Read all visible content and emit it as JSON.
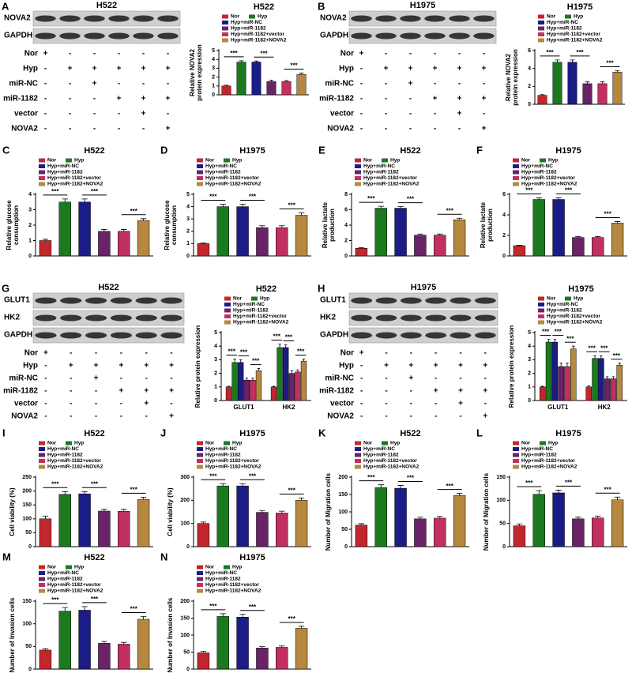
{
  "blots": [
    {
      "panel": "A",
      "title": "H522",
      "proteins": [
        "NOVA2",
        "GAPDH"
      ],
      "rows": [
        {
          "label": "Nor",
          "signs": [
            "+",
            "-",
            "-",
            "-",
            "-",
            "-"
          ]
        },
        {
          "label": "Hyp",
          "signs": [
            "-",
            "+",
            "+",
            "+",
            "+",
            "+"
          ]
        },
        {
          "label": "miR-NC",
          "signs": [
            "-",
            "-",
            "+",
            "-",
            "-",
            "-"
          ]
        },
        {
          "label": "miR-1182",
          "signs": [
            "-",
            "-",
            "-",
            "+",
            "+",
            "+"
          ]
        },
        {
          "label": "vector",
          "signs": [
            "-",
            "-",
            "-",
            "-",
            "+",
            "-"
          ]
        },
        {
          "label": "NOVA2",
          "signs": [
            "-",
            "-",
            "-",
            "-",
            "-",
            "+"
          ]
        }
      ]
    },
    {
      "panel": "B",
      "title": "H1975",
      "proteins": [
        "NOVA2",
        "GAPDH"
      ],
      "rows": [
        {
          "label": "Nor",
          "signs": [
            "+",
            "-",
            "-",
            "-",
            "-",
            "-"
          ]
        },
        {
          "label": "Hyp",
          "signs": [
            "-",
            "+",
            "+",
            "+",
            "+",
            "+"
          ]
        },
        {
          "label": "miR-NC",
          "signs": [
            "-",
            "-",
            "+",
            "-",
            "-",
            "-"
          ]
        },
        {
          "label": "miR-1182",
          "signs": [
            "-",
            "-",
            "-",
            "+",
            "+",
            "+"
          ]
        },
        {
          "label": "vector",
          "signs": [
            "-",
            "-",
            "-",
            "-",
            "+",
            "-"
          ]
        },
        {
          "label": "NOVA2",
          "signs": [
            "-",
            "-",
            "-",
            "-",
            "-",
            "+"
          ]
        }
      ]
    },
    {
      "panel": "G",
      "title": "H522",
      "proteins": [
        "GLUT1",
        "HK2",
        "GAPDH"
      ],
      "rows": [
        {
          "label": "Nor",
          "signs": [
            "+",
            "-",
            "-",
            "-",
            "-",
            "-"
          ]
        },
        {
          "label": "Hyp",
          "signs": [
            "-",
            "+",
            "+",
            "+",
            "+",
            "+"
          ]
        },
        {
          "label": "miR-NC",
          "signs": [
            "-",
            "-",
            "+",
            "-",
            "-",
            "-"
          ]
        },
        {
          "label": "miR-1182",
          "signs": [
            "-",
            "-",
            "-",
            "+",
            "+",
            "+"
          ]
        },
        {
          "label": "vector",
          "signs": [
            "-",
            "-",
            "-",
            "-",
            "+",
            "-"
          ]
        },
        {
          "label": "NOVA2",
          "signs": [
            "-",
            "-",
            "-",
            "-",
            "-",
            "+"
          ]
        }
      ]
    },
    {
      "panel": "H",
      "title": "H1975",
      "proteins": [
        "GLUT1",
        "HK2",
        "GAPDH"
      ],
      "rows": [
        {
          "label": "Nor",
          "signs": [
            "+",
            "-",
            "-",
            "-",
            "-",
            "-"
          ]
        },
        {
          "label": "Hyp",
          "signs": [
            "-",
            "+",
            "+",
            "+",
            "+",
            "+"
          ]
        },
        {
          "label": "miR-NC",
          "signs": [
            "-",
            "-",
            "+",
            "-",
            "-",
            "-"
          ]
        },
        {
          "label": "miR-1182",
          "signs": [
            "-",
            "-",
            "-",
            "+",
            "+",
            "+"
          ]
        },
        {
          "label": "vector",
          "signs": [
            "-",
            "-",
            "-",
            "-",
            "+",
            "-"
          ]
        },
        {
          "label": "NOVA2",
          "signs": [
            "-",
            "-",
            "-",
            "-",
            "-",
            "+"
          ]
        }
      ]
    }
  ],
  "chart_data": [
    {
      "type": "bar",
      "title": "H522",
      "ylabel": [
        "Relative NOVA2",
        "protein expression"
      ],
      "categories": [
        "Nor",
        "Hyp",
        "Hyp+miR-NC",
        "Hyp+miR-1182",
        "Hyp+miR-1182+vector",
        "Hyp+miR-1182+NOVA2"
      ],
      "colors": [
        "#c1272d",
        "#1b7a1e",
        "#1c1c86",
        "#6a2366",
        "#c2305f",
        "#b5873f"
      ],
      "values": [
        1,
        3.7,
        3.7,
        1.5,
        1.5,
        2.3
      ],
      "errors": [
        0.08,
        0.15,
        0.12,
        0.15,
        0.12,
        0.15
      ],
      "annotations": [
        "***",
        "***",
        "***"
      ],
      "ylim": [
        0,
        5
      ],
      "yticks": [
        0,
        1,
        2,
        3,
        4,
        5
      ]
    },
    {
      "type": "bar",
      "title": "H1975",
      "ylabel": [
        "Relative NOVA2",
        "protein expression"
      ],
      "categories": [
        "Nor",
        "Hyp",
        "Hyp+miR-NC",
        "Hyp+miR-1182",
        "Hyp+miR-1182+vector",
        "Hyp+miR-1182+NOVA2"
      ],
      "colors": [
        "#c1272d",
        "#1b7a1e",
        "#1c1c86",
        "#6a2366",
        "#c2305f",
        "#b5873f"
      ],
      "values": [
        1,
        4.7,
        4.7,
        2.3,
        2.3,
        3.6
      ],
      "errors": [
        0.08,
        0.25,
        0.25,
        0.2,
        0.2,
        0.15
      ],
      "annotations": [
        "***",
        "***",
        "***"
      ],
      "ylim": [
        0,
        6
      ],
      "yticks": [
        0,
        2,
        4,
        6
      ]
    },
    {
      "panel": "C",
      "type": "bar",
      "title": "H522",
      "ylabel": [
        "Relative glucose",
        "consumption"
      ],
      "categories": [
        "Nor",
        "Hyp",
        "Hyp+miR-NC",
        "Hyp+miR-1182",
        "Hyp+miR-1182+vector",
        "Hyp+miR-1182+NOVA2"
      ],
      "colors": [
        "#c1272d",
        "#1b7a1e",
        "#1c1c86",
        "#6a2366",
        "#c2305f",
        "#b5873f"
      ],
      "values": [
        1,
        3.5,
        3.5,
        1.6,
        1.6,
        2.3
      ],
      "errors": [
        0.08,
        0.2,
        0.2,
        0.12,
        0.12,
        0.12
      ],
      "annotations": [
        "***",
        "***",
        "***"
      ],
      "ylim": [
        0,
        4
      ],
      "yticks": [
        0,
        1,
        2,
        3,
        4
      ]
    },
    {
      "panel": "D",
      "type": "bar",
      "title": "H1975",
      "ylabel": [
        "Relative glucose",
        "consumption"
      ],
      "categories": [
        "Nor",
        "Hyp",
        "Hyp+miR-NC",
        "Hyp+miR-1182",
        "Hyp+miR-1182+vector",
        "Hyp+miR-1182+NOVA2"
      ],
      "colors": [
        "#c1272d",
        "#1b7a1e",
        "#1c1c86",
        "#6a2366",
        "#c2305f",
        "#b5873f"
      ],
      "values": [
        1,
        4.0,
        4.0,
        2.3,
        2.3,
        3.3
      ],
      "errors": [
        0.05,
        0.2,
        0.2,
        0.15,
        0.15,
        0.2
      ],
      "annotations": [
        "***",
        "***",
        "***"
      ],
      "ylim": [
        0,
        5
      ],
      "yticks": [
        0,
        1,
        2,
        3,
        4,
        5
      ]
    },
    {
      "panel": "E",
      "type": "bar",
      "title": "H522",
      "ylabel": [
        "Relative lactate",
        "production"
      ],
      "categories": [
        "Nor",
        "Hyp",
        "Hyp+miR-NC",
        "Hyp+miR-1182",
        "Hyp+miR-1182+vector",
        "Hyp+miR-1182+NOVA2"
      ],
      "colors": [
        "#c1272d",
        "#1b7a1e",
        "#1c1c86",
        "#6a2366",
        "#c2305f",
        "#b5873f"
      ],
      "values": [
        1,
        6.2,
        6.2,
        2.7,
        2.7,
        4.7
      ],
      "errors": [
        0.08,
        0.25,
        0.2,
        0.15,
        0.15,
        0.2
      ],
      "annotations": [
        "***",
        "***",
        "***"
      ],
      "ylim": [
        0,
        8
      ],
      "yticks": [
        0,
        2,
        4,
        6,
        8
      ]
    },
    {
      "panel": "F",
      "type": "bar",
      "title": "H1975",
      "ylabel": [
        "Relative lactate",
        "production"
      ],
      "categories": [
        "Nor",
        "Hyp",
        "Hyp+miR-NC",
        "Hyp+miR-1182",
        "Hyp+miR-1182+vector",
        "Hyp+miR-1182+NOVA2"
      ],
      "colors": [
        "#c1272d",
        "#1b7a1e",
        "#1c1c86",
        "#6a2366",
        "#c2305f",
        "#b5873f"
      ],
      "values": [
        1,
        5.5,
        5.5,
        1.8,
        1.8,
        3.2
      ],
      "errors": [
        0.05,
        0.15,
        0.15,
        0.1,
        0.1,
        0.15
      ],
      "annotations": [
        "***",
        "***",
        "***"
      ],
      "ylim": [
        0,
        6
      ],
      "yticks": [
        0,
        2,
        4,
        6
      ]
    },
    {
      "type": "grouped_bar",
      "title": "H522",
      "ylabel": [
        "Relative protein expression"
      ],
      "categories": [
        "GLUT1",
        "HK2"
      ],
      "series": [
        {
          "name": "Nor",
          "color": "#c1272d",
          "values": [
            1,
            1
          ],
          "errors": [
            0.05,
            0.05
          ]
        },
        {
          "name": "Hyp",
          "color": "#1b7a1e",
          "values": [
            2.8,
            3.9
          ],
          "errors": [
            0.25,
            0.25
          ]
        },
        {
          "name": "Hyp+miR-NC",
          "color": "#1c1c86",
          "values": [
            2.8,
            3.9
          ],
          "errors": [
            0.2,
            0.2
          ]
        },
        {
          "name": "Hyp+miR-1182",
          "color": "#6a2366",
          "values": [
            1.5,
            2.0
          ],
          "errors": [
            0.15,
            0.2
          ]
        },
        {
          "name": "Hyp+miR-1182+vector",
          "color": "#c2305f",
          "values": [
            1.5,
            2.1
          ],
          "errors": [
            0.15,
            0.15
          ]
        },
        {
          "name": "Hyp+miR-1182+NOVA2",
          "color": "#b5873f",
          "values": [
            2.2,
            2.9
          ],
          "errors": [
            0.15,
            0.15
          ]
        }
      ],
      "annotations": [
        "***",
        "***",
        "***",
        "***",
        "***",
        "***"
      ],
      "ylim": [
        0,
        5
      ],
      "yticks": [
        0,
        1,
        2,
        3,
        4,
        5
      ]
    },
    {
      "type": "grouped_bar",
      "title": "H1975",
      "ylabel": [
        "Relative protein expression"
      ],
      "categories": [
        "GLUT1",
        "HK2"
      ],
      "series": [
        {
          "name": "Nor",
          "color": "#c1272d",
          "values": [
            1,
            1
          ],
          "errors": [
            0.05,
            0.08
          ]
        },
        {
          "name": "Hyp",
          "color": "#1b7a1e",
          "values": [
            4.3,
            3.1
          ],
          "errors": [
            0.2,
            0.2
          ]
        },
        {
          "name": "Hyp+miR-NC",
          "color": "#1c1c86",
          "values": [
            4.3,
            3.1
          ],
          "errors": [
            0.2,
            0.2
          ]
        },
        {
          "name": "Hyp+miR-1182",
          "color": "#6a2366",
          "values": [
            2.5,
            1.6
          ],
          "errors": [
            0.25,
            0.15
          ]
        },
        {
          "name": "Hyp+miR-1182+vector",
          "color": "#c2305f",
          "values": [
            2.5,
            1.6
          ],
          "errors": [
            0.25,
            0.15
          ]
        },
        {
          "name": "Hyp+miR-1182+NOVA2",
          "color": "#b5873f",
          "values": [
            3.8,
            2.6
          ],
          "errors": [
            0.2,
            0.15
          ]
        }
      ],
      "annotations": [
        "***",
        "***",
        "***",
        "***",
        "***",
        "***"
      ],
      "ylim": [
        0,
        5
      ],
      "yticks": [
        0,
        1,
        2,
        3,
        4,
        5
      ]
    },
    {
      "panel": "I",
      "type": "bar",
      "title": "H522",
      "ylabel": [
        "Cell viability (%)"
      ],
      "categories": [
        "Nor",
        "Hyp",
        "Hyp+miR-NC",
        "Hyp+miR-1182",
        "Hyp+miR-1182+vector",
        "Hyp+miR-1182+NOVA2"
      ],
      "colors": [
        "#c1272d",
        "#1b7a1e",
        "#1c1c86",
        "#6a2366",
        "#c2305f",
        "#b5873f"
      ],
      "values": [
        100,
        188,
        190,
        128,
        127,
        170
      ],
      "errors": [
        10,
        10,
        8,
        7,
        8,
        8
      ],
      "annotations": [
        "***",
        "***",
        "***"
      ],
      "ylim": [
        0,
        250
      ],
      "yticks": [
        0,
        50,
        100,
        150,
        200,
        250
      ]
    },
    {
      "panel": "J",
      "type": "bar",
      "title": "H1975",
      "ylabel": [
        "Cell viability (%)"
      ],
      "categories": [
        "Nor",
        "Hyp",
        "Hyp+miR-NC",
        "Hyp+miR-1182",
        "Hyp+miR-1182+vector",
        "Hyp+miR-1182+NOVA2"
      ],
      "colors": [
        "#c1272d",
        "#1b7a1e",
        "#1c1c86",
        "#6a2366",
        "#c2305f",
        "#b5873f"
      ],
      "values": [
        100,
        262,
        262,
        148,
        145,
        200
      ],
      "errors": [
        6,
        10,
        10,
        8,
        8,
        10
      ],
      "annotations": [
        "***",
        "***",
        "***"
      ],
      "ylim": [
        0,
        300
      ],
      "yticks": [
        0,
        100,
        200,
        300
      ]
    },
    {
      "panel": "K",
      "type": "bar",
      "title": "H522",
      "ylabel": [
        "Number of Migration cells"
      ],
      "categories": [
        "Nor",
        "Hyp",
        "Hyp+miR-NC",
        "Hyp+miR-1182",
        "Hyp+miR-1182+vector",
        "Hyp+miR-1182+NOVA2"
      ],
      "colors": [
        "#c1272d",
        "#1b7a1e",
        "#1c1c86",
        "#6a2366",
        "#c2305f",
        "#b5873f"
      ],
      "values": [
        62,
        170,
        168,
        80,
        82,
        147
      ],
      "errors": [
        4,
        8,
        8,
        5,
        5,
        6
      ],
      "annotations": [
        "***",
        "***",
        "***"
      ],
      "ylim": [
        0,
        200
      ],
      "yticks": [
        0,
        50,
        100,
        150,
        200
      ]
    },
    {
      "panel": "L",
      "type": "bar",
      "title": "H1975",
      "ylabel": [
        "Number of Migration cells"
      ],
      "categories": [
        "Nor",
        "Hyp",
        "Hyp+miR-NC",
        "Hyp+miR-1182",
        "Hyp+miR-1182+vector",
        "Hyp+miR-1182+NOVA2"
      ],
      "colors": [
        "#c1272d",
        "#1b7a1e",
        "#1c1c86",
        "#6a2366",
        "#c2305f",
        "#b5873f"
      ],
      "values": [
        45,
        113,
        116,
        60,
        62,
        101
      ],
      "errors": [
        4,
        8,
        6,
        4,
        4,
        6
      ],
      "annotations": [
        "***",
        "***",
        "***"
      ],
      "ylim": [
        0,
        150
      ],
      "yticks": [
        0,
        50,
        100,
        150
      ]
    },
    {
      "panel": "M",
      "type": "bar",
      "title": "H522",
      "ylabel": [
        "Number of Invasion cells"
      ],
      "categories": [
        "Nor",
        "Hyp",
        "Hyp+miR-NC",
        "Hyp+miR-1182",
        "Hyp+miR-1182+vector",
        "Hyp+miR-1182+NOVA2"
      ],
      "colors": [
        "#c1272d",
        "#1b7a1e",
        "#1c1c86",
        "#6a2366",
        "#c2305f",
        "#b5873f"
      ],
      "values": [
        42,
        128,
        130,
        57,
        55,
        110
      ],
      "errors": [
        3,
        8,
        8,
        4,
        4,
        6
      ],
      "annotations": [
        "***",
        "***",
        "***"
      ],
      "ylim": [
        0,
        150
      ],
      "yticks": [
        0,
        50,
        100,
        150
      ]
    },
    {
      "panel": "N",
      "type": "bar",
      "title": "H1975",
      "ylabel": [
        "Number of Invasion cells"
      ],
      "categories": [
        "Nor",
        "Hyp",
        "Hyp+miR-NC",
        "Hyp+miR-1182",
        "Hyp+miR-1182+vector",
        "Hyp+miR-1182+NOVA2"
      ],
      "colors": [
        "#c1272d",
        "#1b7a1e",
        "#1c1c86",
        "#6a2366",
        "#c2305f",
        "#b5873f"
      ],
      "values": [
        48,
        155,
        153,
        62,
        64,
        120
      ],
      "errors": [
        4,
        8,
        8,
        4,
        4,
        6
      ],
      "annotations": [
        "***",
        "***",
        "***"
      ],
      "ylim": [
        0,
        200
      ],
      "yticks": [
        0,
        50,
        100,
        150,
        200
      ]
    }
  ]
}
